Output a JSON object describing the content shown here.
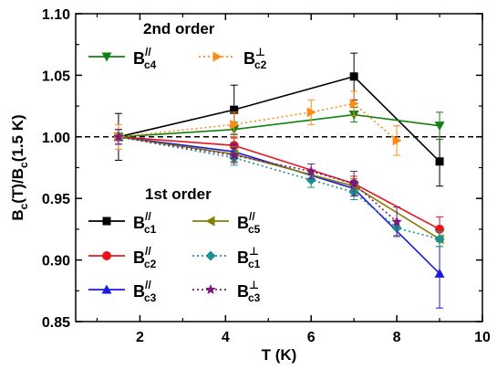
{
  "chart_data": {
    "type": "scatter",
    "xlabel": "T (K)",
    "ylabel": "B_c(T)/B_c(1.5 K)",
    "xlim": [
      0.5,
      10
    ],
    "ylim": [
      0.85,
      1.1
    ],
    "x_ticks": [
      2,
      4,
      6,
      8,
      10
    ],
    "y_ticks": [
      0.85,
      0.9,
      0.95,
      1.0,
      1.05,
      1.1
    ],
    "x_tick_labels": [
      "2",
      "4",
      "6",
      "8",
      "10"
    ],
    "y_tick_labels": [
      "0.85",
      "0.90",
      "0.95",
      "1.00",
      "1.05",
      "1.10"
    ],
    "grid": false,
    "reference_line": {
      "y": 1.0,
      "style": "dashed",
      "color": "#000000"
    },
    "legend_groups": [
      {
        "title": "2nd order",
        "series": [
          "c4_par",
          "c2_perp"
        ]
      },
      {
        "title": "1st order",
        "series": [
          "c1_par",
          "c5_par",
          "c2_par",
          "c1_perp",
          "c3_par",
          "c3_perp"
        ]
      }
    ],
    "series": [
      {
        "id": "c1_par",
        "name_main": "B",
        "name_sub": "c1",
        "name_sup": "//",
        "color": "#000000",
        "marker": "square",
        "line": "solid",
        "x": [
          1.5,
          4.2,
          7.0,
          9.0
        ],
        "y": [
          1.0,
          1.022,
          1.049,
          0.98
        ],
        "yerr": [
          0.019,
          0.02,
          0.019,
          0.02
        ]
      },
      {
        "id": "c2_par",
        "name_main": "B",
        "name_sub": "c2",
        "name_sup": "//",
        "color": "#e8141c",
        "marker": "circle",
        "line": "solid",
        "x": [
          1.5,
          4.2,
          7.0,
          9.0
        ],
        "y": [
          1.0,
          0.993,
          0.962,
          0.925
        ],
        "yerr": [
          0.006,
          0.006,
          0.006,
          0.01
        ]
      },
      {
        "id": "c3_par",
        "name_main": "B",
        "name_sub": "c3",
        "name_sup": "//",
        "color": "#1a1ae0",
        "marker": "triangle-up",
        "line": "solid",
        "x": [
          1.5,
          4.2,
          7.0,
          9.0
        ],
        "y": [
          1.0,
          0.988,
          0.958,
          0.889
        ],
        "yerr": [
          0.006,
          0.006,
          0.006,
          0.028
        ]
      },
      {
        "id": "c4_par",
        "name_main": "B",
        "name_sub": "c4",
        "name_sup": "//",
        "color": "#138013",
        "marker": "triangle-down",
        "line": "solid",
        "x": [
          1.5,
          4.2,
          7.0,
          9.0
        ],
        "y": [
          1.0,
          1.006,
          1.018,
          1.009
        ],
        "yerr": [
          0.006,
          0.006,
          0.006,
          0.011
        ]
      },
      {
        "id": "c5_par",
        "name_main": "B",
        "name_sub": "c5",
        "name_sup": "//",
        "color": "#808000",
        "marker": "triangle-left",
        "line": "solid",
        "x": [
          1.5,
          4.2,
          7.0,
          9.0
        ],
        "y": [
          1.0,
          0.986,
          0.96,
          0.917
        ],
        "yerr": [
          0.006,
          0.006,
          0.006,
          0.006
        ]
      },
      {
        "id": "c1_perp",
        "name_main": "B",
        "name_sub": "c1",
        "name_sup": "⊥",
        "color": "#1a9090",
        "marker": "diamond",
        "line": "dotted",
        "x": [
          1.5,
          4.2,
          6.0,
          7.0,
          8.0,
          9.0
        ],
        "y": [
          1.0,
          0.983,
          0.965,
          0.955,
          0.926,
          0.917
        ],
        "yerr": [
          0.006,
          0.006,
          0.006,
          0.006,
          0.006,
          0.006
        ]
      },
      {
        "id": "c2_perp",
        "name_main": "B",
        "name_sub": "c2",
        "name_sup": "⊥",
        "color": "#ff8c1a",
        "marker": "triangle-right",
        "line": "dotted",
        "x": [
          1.5,
          4.2,
          6.0,
          7.0,
          8.0
        ],
        "y": [
          1.0,
          1.01,
          1.02,
          1.027,
          0.997
        ],
        "yerr": [
          0.01,
          0.01,
          0.01,
          0.01,
          0.012
        ]
      },
      {
        "id": "c3_perp",
        "name_main": "B",
        "name_sub": "c3",
        "name_sup": "⊥",
        "color": "#7a1a7a",
        "marker": "star",
        "line": "dotted",
        "x": [
          1.5,
          4.2,
          6.0,
          7.0,
          8.0
        ],
        "y": [
          1.0,
          0.985,
          0.972,
          0.962,
          0.931
        ],
        "yerr": [
          0.006,
          0.006,
          0.006,
          0.01,
          0.012
        ]
      }
    ]
  }
}
